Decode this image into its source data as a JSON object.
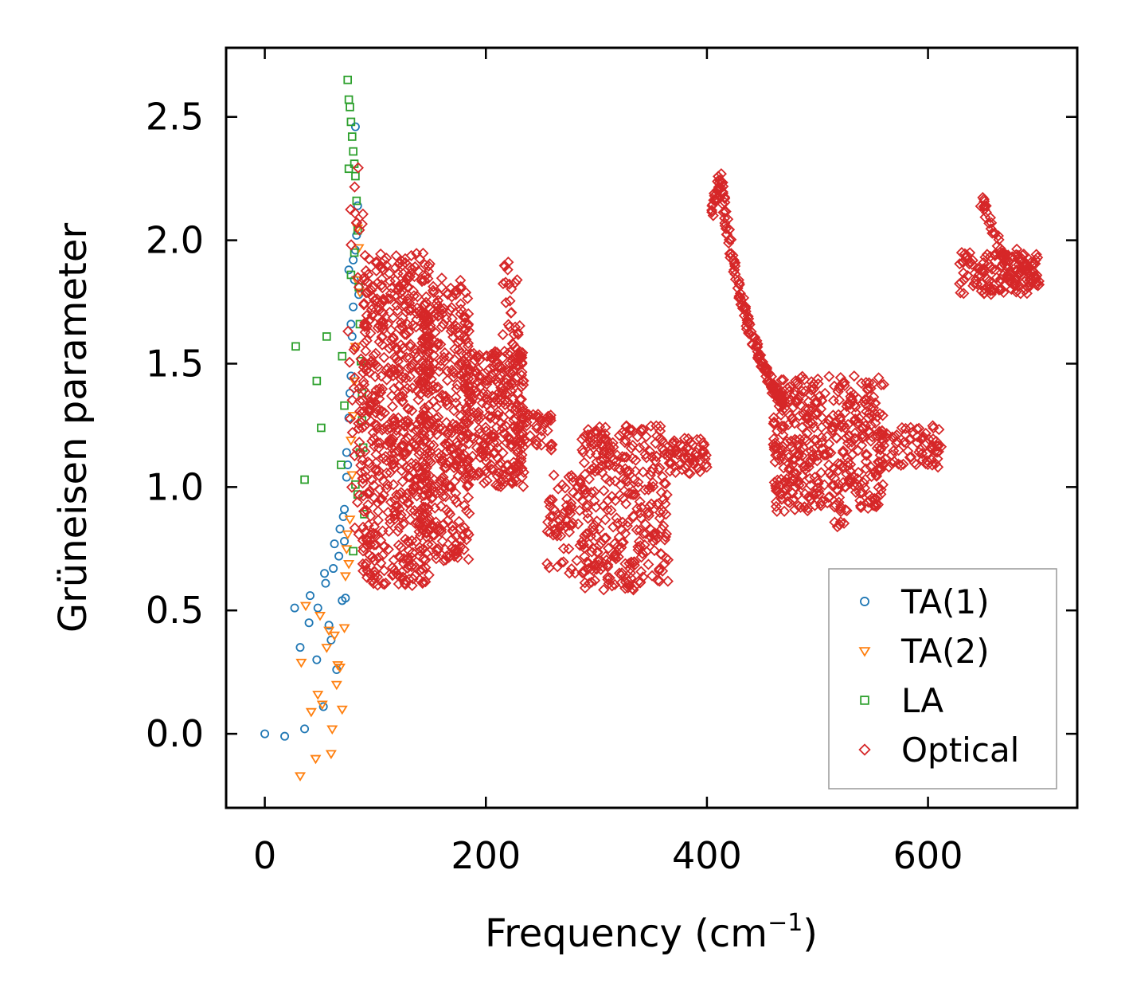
{
  "chart_data": {
    "type": "scatter",
    "title": "",
    "xlabel": "Frequency (cm",
    "xlabel_sup": "−1",
    "xlabel_close": ")",
    "ylabel": "Grüneisen parameter",
    "xlim": [
      -35,
      735
    ],
    "ylim": [
      -0.3,
      2.78
    ],
    "xticks": [
      0,
      200,
      400,
      600
    ],
    "xtick_labels": [
      "0",
      "200",
      "400",
      "600"
    ],
    "yticks": [
      0.0,
      0.5,
      1.0,
      1.5,
      2.0,
      2.5
    ],
    "ytick_labels": [
      "0.0",
      "0.5",
      "1.0",
      "1.5",
      "2.0",
      "2.5"
    ],
    "legend_position": "lower-right",
    "series": [
      {
        "name": "TA(1)",
        "marker": "circle",
        "color": "#1f77b4",
        "x": [
          0,
          18,
          27,
          32,
          36,
          40,
          41,
          47,
          48,
          53,
          54,
          55,
          58,
          60,
          62,
          63,
          65,
          67,
          68,
          70,
          71,
          72,
          73,
          74,
          75,
          76,
          77,
          78,
          79,
          80,
          81,
          82,
          83,
          84,
          85,
          72,
          74,
          76,
          78,
          80,
          82
        ],
        "y": [
          0.0,
          -0.01,
          0.51,
          0.35,
          0.02,
          0.45,
          0.56,
          0.3,
          0.51,
          0.11,
          0.65,
          0.61,
          0.44,
          0.38,
          0.67,
          0.77,
          0.26,
          0.72,
          0.83,
          0.54,
          0.88,
          0.91,
          0.55,
          1.04,
          1.09,
          1.28,
          1.38,
          1.45,
          1.61,
          1.73,
          1.84,
          1.96,
          2.02,
          2.14,
          1.78,
          0.78,
          1.14,
          1.88,
          1.66,
          1.92,
          2.46
        ]
      },
      {
        "name": "TA(2)",
        "marker": "triangle-down",
        "color": "#ff7f0e",
        "x": [
          32,
          33,
          37,
          42,
          46,
          48,
          50,
          52,
          56,
          60,
          61,
          63,
          65,
          68,
          70,
          72,
          73,
          75,
          76,
          77,
          78,
          79,
          80,
          81,
          82,
          83,
          84,
          85,
          86,
          58,
          66,
          74
        ],
        "y": [
          -0.17,
          0.29,
          0.52,
          0.09,
          -0.1,
          0.16,
          0.48,
          0.12,
          0.35,
          -0.08,
          0.02,
          0.4,
          0.2,
          0.27,
          0.1,
          0.43,
          0.64,
          0.81,
          0.69,
          0.87,
          1.19,
          1.05,
          1.29,
          1.43,
          1.57,
          1.84,
          2.05,
          1.97,
          1.79,
          0.42,
          0.28,
          0.75
        ]
      },
      {
        "name": "LA",
        "marker": "square",
        "color": "#2ca02c",
        "x": [
          28,
          36,
          47,
          51,
          56,
          69,
          70,
          72,
          75,
          76,
          77,
          78,
          79,
          80,
          81,
          82,
          83,
          84,
          85,
          86,
          87,
          88,
          89,
          90,
          78,
          80,
          82,
          84,
          86,
          88,
          76,
          81
        ],
        "y": [
          1.57,
          1.03,
          1.43,
          1.24,
          1.61,
          1.09,
          1.53,
          1.33,
          2.65,
          2.57,
          2.54,
          2.48,
          2.42,
          2.36,
          2.31,
          2.26,
          2.16,
          2.04,
          1.81,
          1.66,
          1.51,
          1.38,
          1.16,
          0.89,
          1.86,
          0.74,
          1.01,
          0.97,
          1.14,
          1.27,
          2.29,
          1.95
        ]
      },
      {
        "name": "Optical",
        "marker": "diamond",
        "color": "#d62728",
        "clusters": [
          {
            "x_range": [
              75,
              90
            ],
            "y_range": [
              0.8,
              2.3
            ],
            "count": 40
          },
          {
            "x_range": [
              88,
              150
            ],
            "y_range": [
              0.6,
              1.95
            ],
            "count": 620
          },
          {
            "x_range": [
              140,
              185
            ],
            "y_range": [
              0.7,
              1.85
            ],
            "count": 360
          },
          {
            "x_range": [
              180,
              235
            ],
            "y_range": [
              1.0,
              1.55
            ],
            "count": 300
          },
          {
            "x_range": [
              215,
              232
            ],
            "y_range": [
              1.5,
              1.93
            ],
            "count": 30
          },
          {
            "x_range": [
              230,
              260
            ],
            "y_range": [
              1.15,
              1.3
            ],
            "count": 40
          },
          {
            "x_range": [
              255,
              290
            ],
            "y_range": [
              0.65,
              1.05
            ],
            "count": 70
          },
          {
            "x_range": [
              285,
              365
            ],
            "y_range": [
              0.58,
              1.25
            ],
            "count": 330
          },
          {
            "x_range": [
              365,
              400
            ],
            "y_range": [
              1.05,
              1.2
            ],
            "count": 60
          },
          {
            "x_range": [
              460,
              560
            ],
            "y_range": [
              0.9,
              1.45
            ],
            "count": 420
          },
          {
            "x_range": [
              555,
              612
            ],
            "y_range": [
              1.08,
              1.25
            ],
            "count": 80
          },
          {
            "x_range": [
              515,
              525
            ],
            "y_range": [
              0.8,
              0.87
            ],
            "count": 6
          },
          {
            "x_range": [
              628,
              700
            ],
            "y_range": [
              1.78,
              1.95
            ],
            "count": 120
          }
        ],
        "curves": [
          {
            "x": [
              405,
              412,
              420,
              430,
              440,
              450,
              460,
              470
            ],
            "y": [
              2.12,
              2.26,
              2.0,
              1.78,
              1.62,
              1.5,
              1.4,
              1.33
            ],
            "count": 160
          },
          {
            "x": [
              648,
              655,
              665,
              672,
              680
            ],
            "y": [
              2.16,
              2.1,
              1.98,
              1.88,
              1.8
            ],
            "count": 40
          },
          {
            "x": [
              680,
              690,
              700
            ],
            "y": [
              1.95,
              1.88,
              1.82
            ],
            "count": 30
          }
        ]
      }
    ]
  }
}
